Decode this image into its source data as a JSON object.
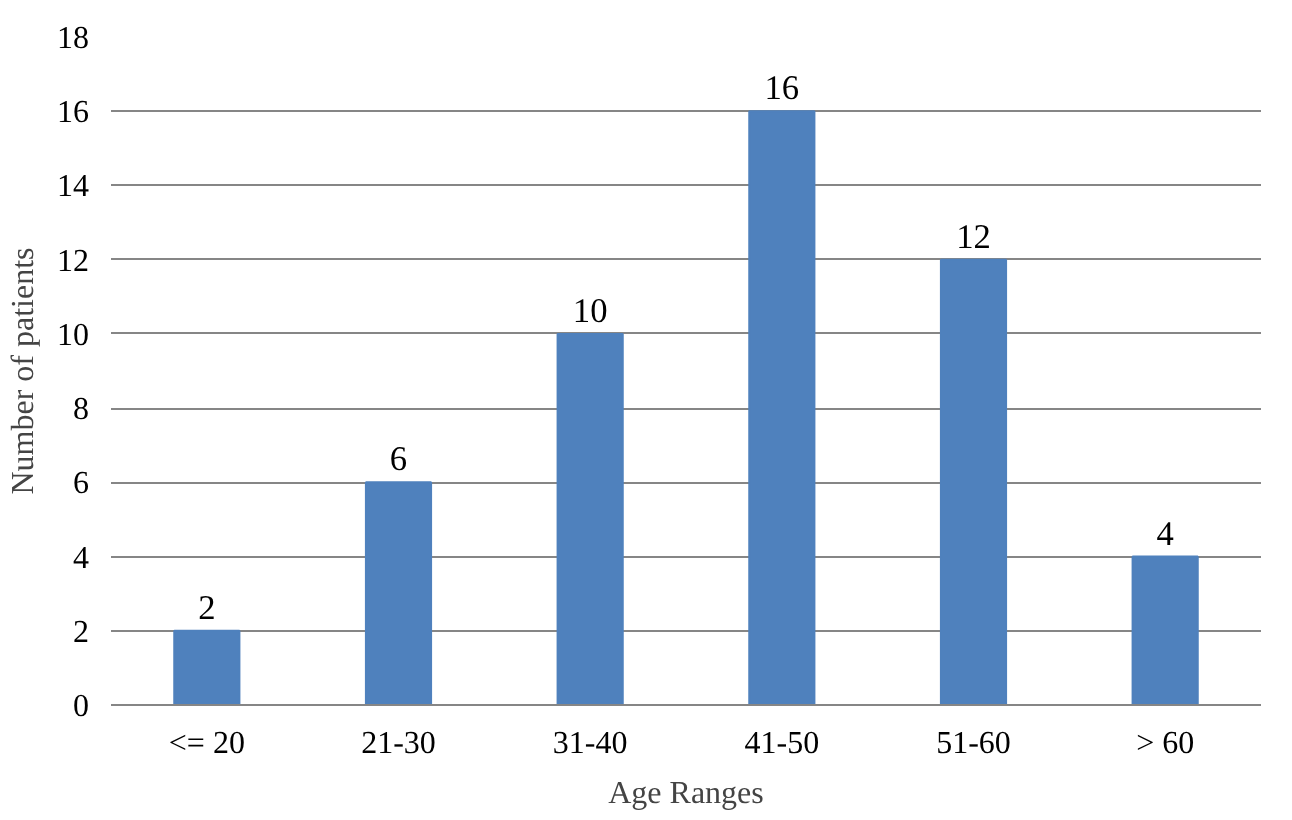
{
  "chart_data": {
    "type": "bar",
    "xlabel": "Age Ranges",
    "ylabel": "Number of patients",
    "categories": [
      "<= 20",
      "21-30",
      "31-40",
      "41-50",
      "51-60",
      "> 60"
    ],
    "values": [
      2,
      6,
      10,
      16,
      12,
      4
    ],
    "color": "#4f81bd",
    "ylim": [
      0,
      18
    ],
    "yticks": [
      0,
      2,
      4,
      6,
      8,
      10,
      12,
      14,
      16,
      18
    ],
    "grid": "y",
    "data_labels": true
  }
}
